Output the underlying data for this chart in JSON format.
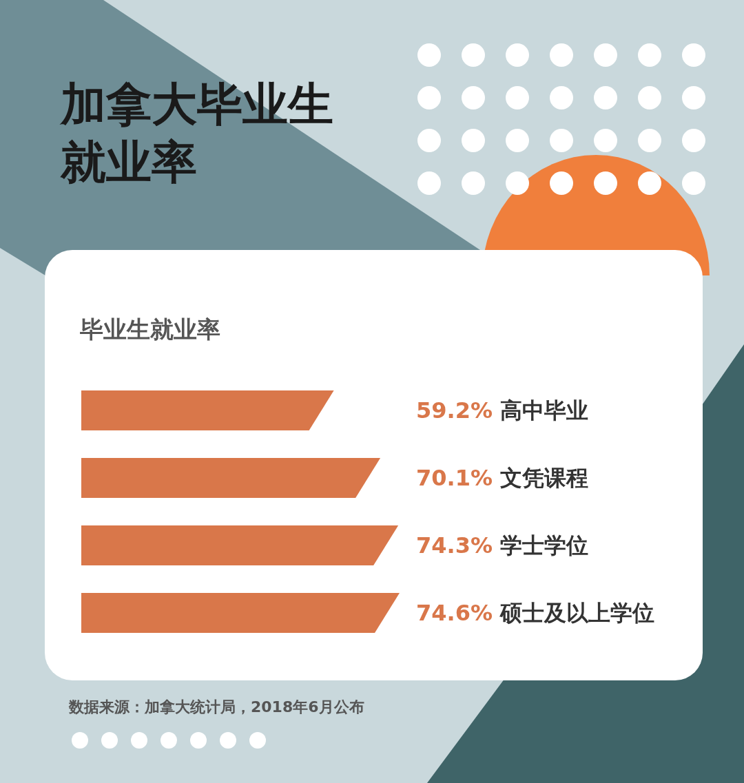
{
  "chart_data": {
    "type": "bar",
    "orientation": "horizontal",
    "title": "加拿大毕业生就业率",
    "subtitle": "毕业生就业率",
    "categories": [
      "高中毕业",
      "文凭课程",
      "学士学位",
      "硕士及以上学位"
    ],
    "values": [
      59.2,
      70.1,
      74.3,
      74.6
    ],
    "color": "#d9774a",
    "value_labels": [
      "59.2%",
      "70.1%",
      "74.3%",
      "74.6%"
    ],
    "annotations": [
      "数据来源：加拿大统计局，2018年6月公布"
    ]
  }
}
